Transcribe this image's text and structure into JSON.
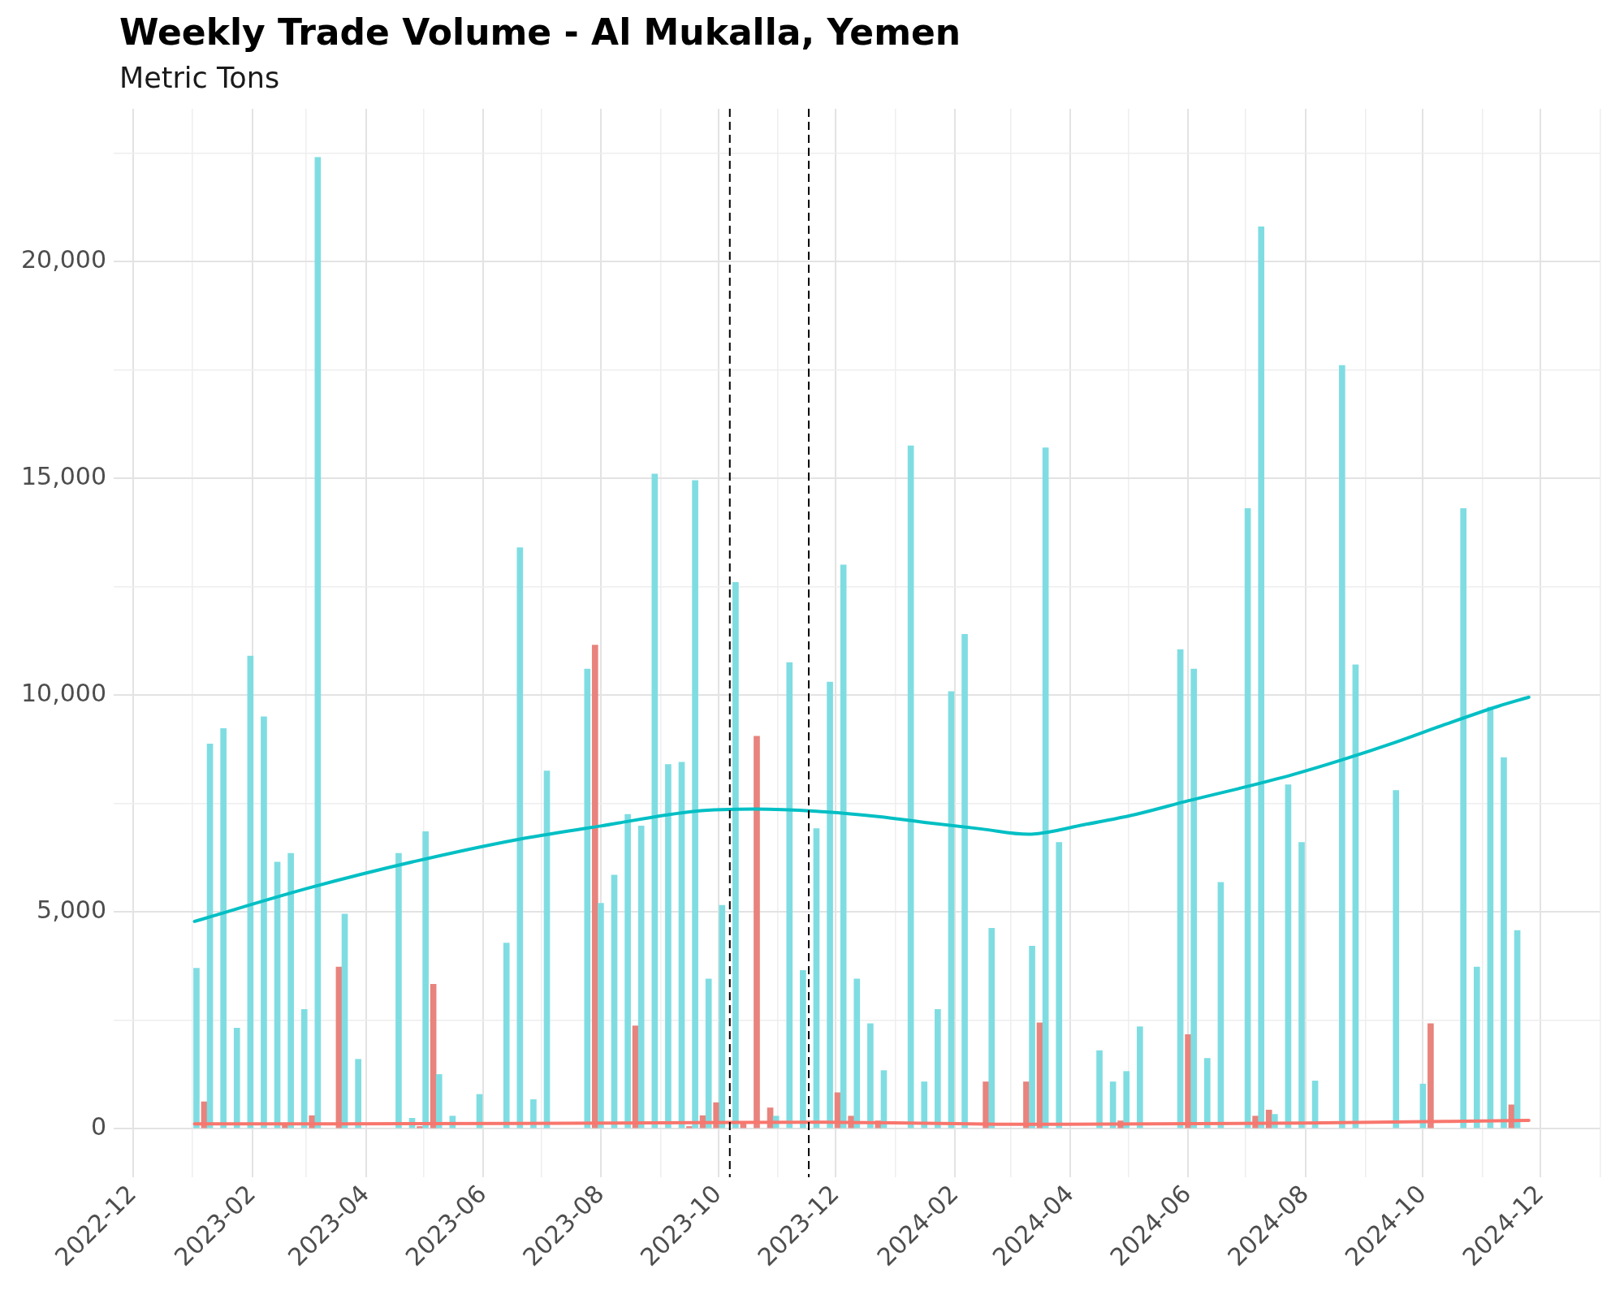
{
  "chart_data": {
    "type": "bar",
    "title": "Weekly Trade Volume - Al Mukalla, Yemen",
    "subtitle": "Metric Tons",
    "xlim": [
      "2022-11-21",
      "2025-01-01"
    ],
    "xticks": [
      "2022-12",
      {
        "value": "2023-01",
        "label": null
      },
      "2023-02",
      {
        "value": "2023-03",
        "label": null
      },
      "2023-04",
      {
        "value": "2023-05",
        "label": null
      },
      "2023-06",
      {
        "value": "2023-07",
        "label": null
      },
      "2023-08",
      {
        "value": "2023-09",
        "label": null
      },
      "2023-10",
      {
        "value": "2023-11",
        "label": null
      },
      "2023-12",
      {
        "value": "2024-01",
        "label": null
      },
      "2024-02",
      {
        "value": "2024-03",
        "label": null
      },
      "2024-04",
      {
        "value": "2024-05",
        "label": null
      },
      "2024-06",
      {
        "value": "2024-07",
        "label": null
      },
      "2024-08",
      {
        "value": "2024-09",
        "label": null
      },
      "2024-10",
      {
        "value": "2024-11",
        "label": null
      },
      "2024-12",
      {
        "value": "2025-01",
        "label": null
      }
    ],
    "ylim": [
      -1120,
      23520
    ],
    "yticks": [
      0,
      {
        "value": 2500,
        "label": null
      },
      {
        "value": 5000,
        "label": "5,000"
      },
      {
        "value": 7500,
        "label": null
      },
      {
        "value": 10000,
        "label": "10,000"
      },
      {
        "value": 12500,
        "label": null
      },
      {
        "value": 15000,
        "label": "15,000"
      },
      {
        "value": 17500,
        "label": null
      },
      {
        "value": 20000,
        "label": "20,000"
      },
      {
        "value": 22500,
        "label": null
      }
    ],
    "grid": true,
    "series": [
      {
        "color": "#7fdde2",
        "x": [
          "2023-01-03",
          "2023-01-10",
          "2023-01-17",
          "2023-01-24",
          "2023-01-31",
          "2023-02-07",
          "2023-02-14",
          "2023-02-21",
          "2023-02-28",
          "2023-03-07",
          "2023-03-21",
          "2023-03-28",
          "2023-04-18",
          "2023-04-25",
          "2023-05-02",
          "2023-05-09",
          "2023-05-16",
          "2023-05-30",
          "2023-06-13",
          "2023-06-20",
          "2023-06-27",
          "2023-07-04",
          "2023-07-25",
          "2023-08-01",
          "2023-08-08",
          "2023-08-15",
          "2023-08-22",
          "2023-08-29",
          "2023-09-05",
          "2023-09-12",
          "2023-09-19",
          "2023-09-26",
          "2023-10-03",
          "2023-10-10",
          "2023-10-31",
          "2023-11-07",
          "2023-11-14",
          "2023-11-21",
          "2023-11-28",
          "2023-12-05",
          "2023-12-12",
          "2023-12-19",
          "2023-12-26",
          "2024-01-09",
          "2024-01-16",
          "2024-01-23",
          "2024-01-30",
          "2024-02-06",
          "2024-02-20",
          "2024-03-12",
          "2024-03-19",
          "2024-03-26",
          "2024-04-16",
          "2024-04-23",
          "2024-04-30",
          "2024-05-07",
          "2024-05-28",
          "2024-06-04",
          "2024-06-11",
          "2024-06-18",
          "2024-07-02",
          "2024-07-09",
          "2024-07-16",
          "2024-07-23",
          "2024-07-30",
          "2024-08-06",
          "2024-08-20",
          "2024-08-27",
          "2024-09-17",
          "2024-10-01",
          "2024-10-22",
          "2024-10-29",
          "2024-11-05",
          "2024-11-12",
          "2024-11-19"
        ],
        "values": [
          3700,
          8870,
          9230,
          2320,
          10900,
          9500,
          6150,
          6350,
          2750,
          22400,
          4950,
          1600,
          6350,
          240,
          6850,
          1250,
          290,
          790,
          4280,
          13400,
          670,
          8250,
          10600,
          5200,
          5850,
          7250,
          6980,
          15100,
          8400,
          8450,
          14950,
          3450,
          5150,
          12600,
          290,
          10750,
          3650,
          6920,
          10300,
          13000,
          3450,
          2420,
          1340,
          15750,
          1080,
          2750,
          10080,
          11400,
          4620,
          4210,
          15700,
          6600,
          1800,
          1080,
          1320,
          2350,
          11050,
          10600,
          1620,
          5680,
          14300,
          20800,
          330,
          7930,
          6600,
          1100,
          17600,
          10700,
          7800,
          1030,
          14300,
          3730,
          9720,
          8560,
          4570
        ]
      },
      {
        "color": "#e8837d",
        "x": [
          "2023-01-07",
          "2023-02-18",
          "2023-03-04",
          "2023-03-18",
          "2023-04-29",
          "2023-05-06",
          "2023-07-29",
          "2023-08-19",
          "2023-09-16",
          "2023-09-23",
          "2023-09-30",
          "2023-10-14",
          "2023-10-21",
          "2023-10-28",
          "2023-12-02",
          "2023-12-09",
          "2023-12-23",
          "2024-02-17",
          "2024-03-09",
          "2024-03-16",
          "2024-04-27",
          "2024-06-01",
          "2024-07-06",
          "2024-07-13",
          "2024-10-05",
          "2024-11-16"
        ],
        "values": [
          620,
          100,
          300,
          3730,
          50,
          3330,
          11150,
          2370,
          50,
          300,
          600,
          150,
          9050,
          480,
          830,
          290,
          180,
          1080,
          1080,
          2440,
          180,
          2170,
          290,
          430,
          2420,
          550
        ]
      },
      {
        "type": "line",
        "color": "#00bfc4",
        "x": [
          "2023-01-02",
          "2023-03-04",
          "2023-04-27",
          "2023-06-19",
          "2023-08-01",
          "2023-09-19",
          "2023-10-20",
          "2023-11-21",
          "2023-12-23",
          "2024-01-19",
          "2024-02-15",
          "2024-03-10",
          "2024-04-08",
          "2024-05-05",
          "2024-06-01",
          "2024-06-28",
          "2024-07-25",
          "2024-08-21",
          "2024-09-16",
          "2024-10-13",
          "2024-11-09",
          "2024-11-25"
        ],
        "values": [
          4780,
          5570,
          6170,
          6670,
          6980,
          7320,
          7370,
          7320,
          7200,
          7050,
          6910,
          6790,
          7010,
          7250,
          7560,
          7850,
          8160,
          8520,
          8900,
          9330,
          9740,
          9950
        ]
      },
      {
        "type": "line",
        "color": "#f8766d",
        "x": [
          "2023-01-02",
          "2023-06-19",
          "2023-09-19",
          "2023-11-21",
          "2024-03-10",
          "2024-08-01",
          "2024-11-25"
        ],
        "values": [
          110,
          120,
          140,
          150,
          100,
          130,
          190
        ]
      }
    ],
    "ref_lines": [
      {
        "axis": "x",
        "value": "2023-10-07",
        "color": "#000000",
        "line_style": "dashed"
      },
      {
        "axis": "x",
        "value": "2023-11-17",
        "color": "#000000",
        "line_style": "dashed"
      }
    ]
  }
}
